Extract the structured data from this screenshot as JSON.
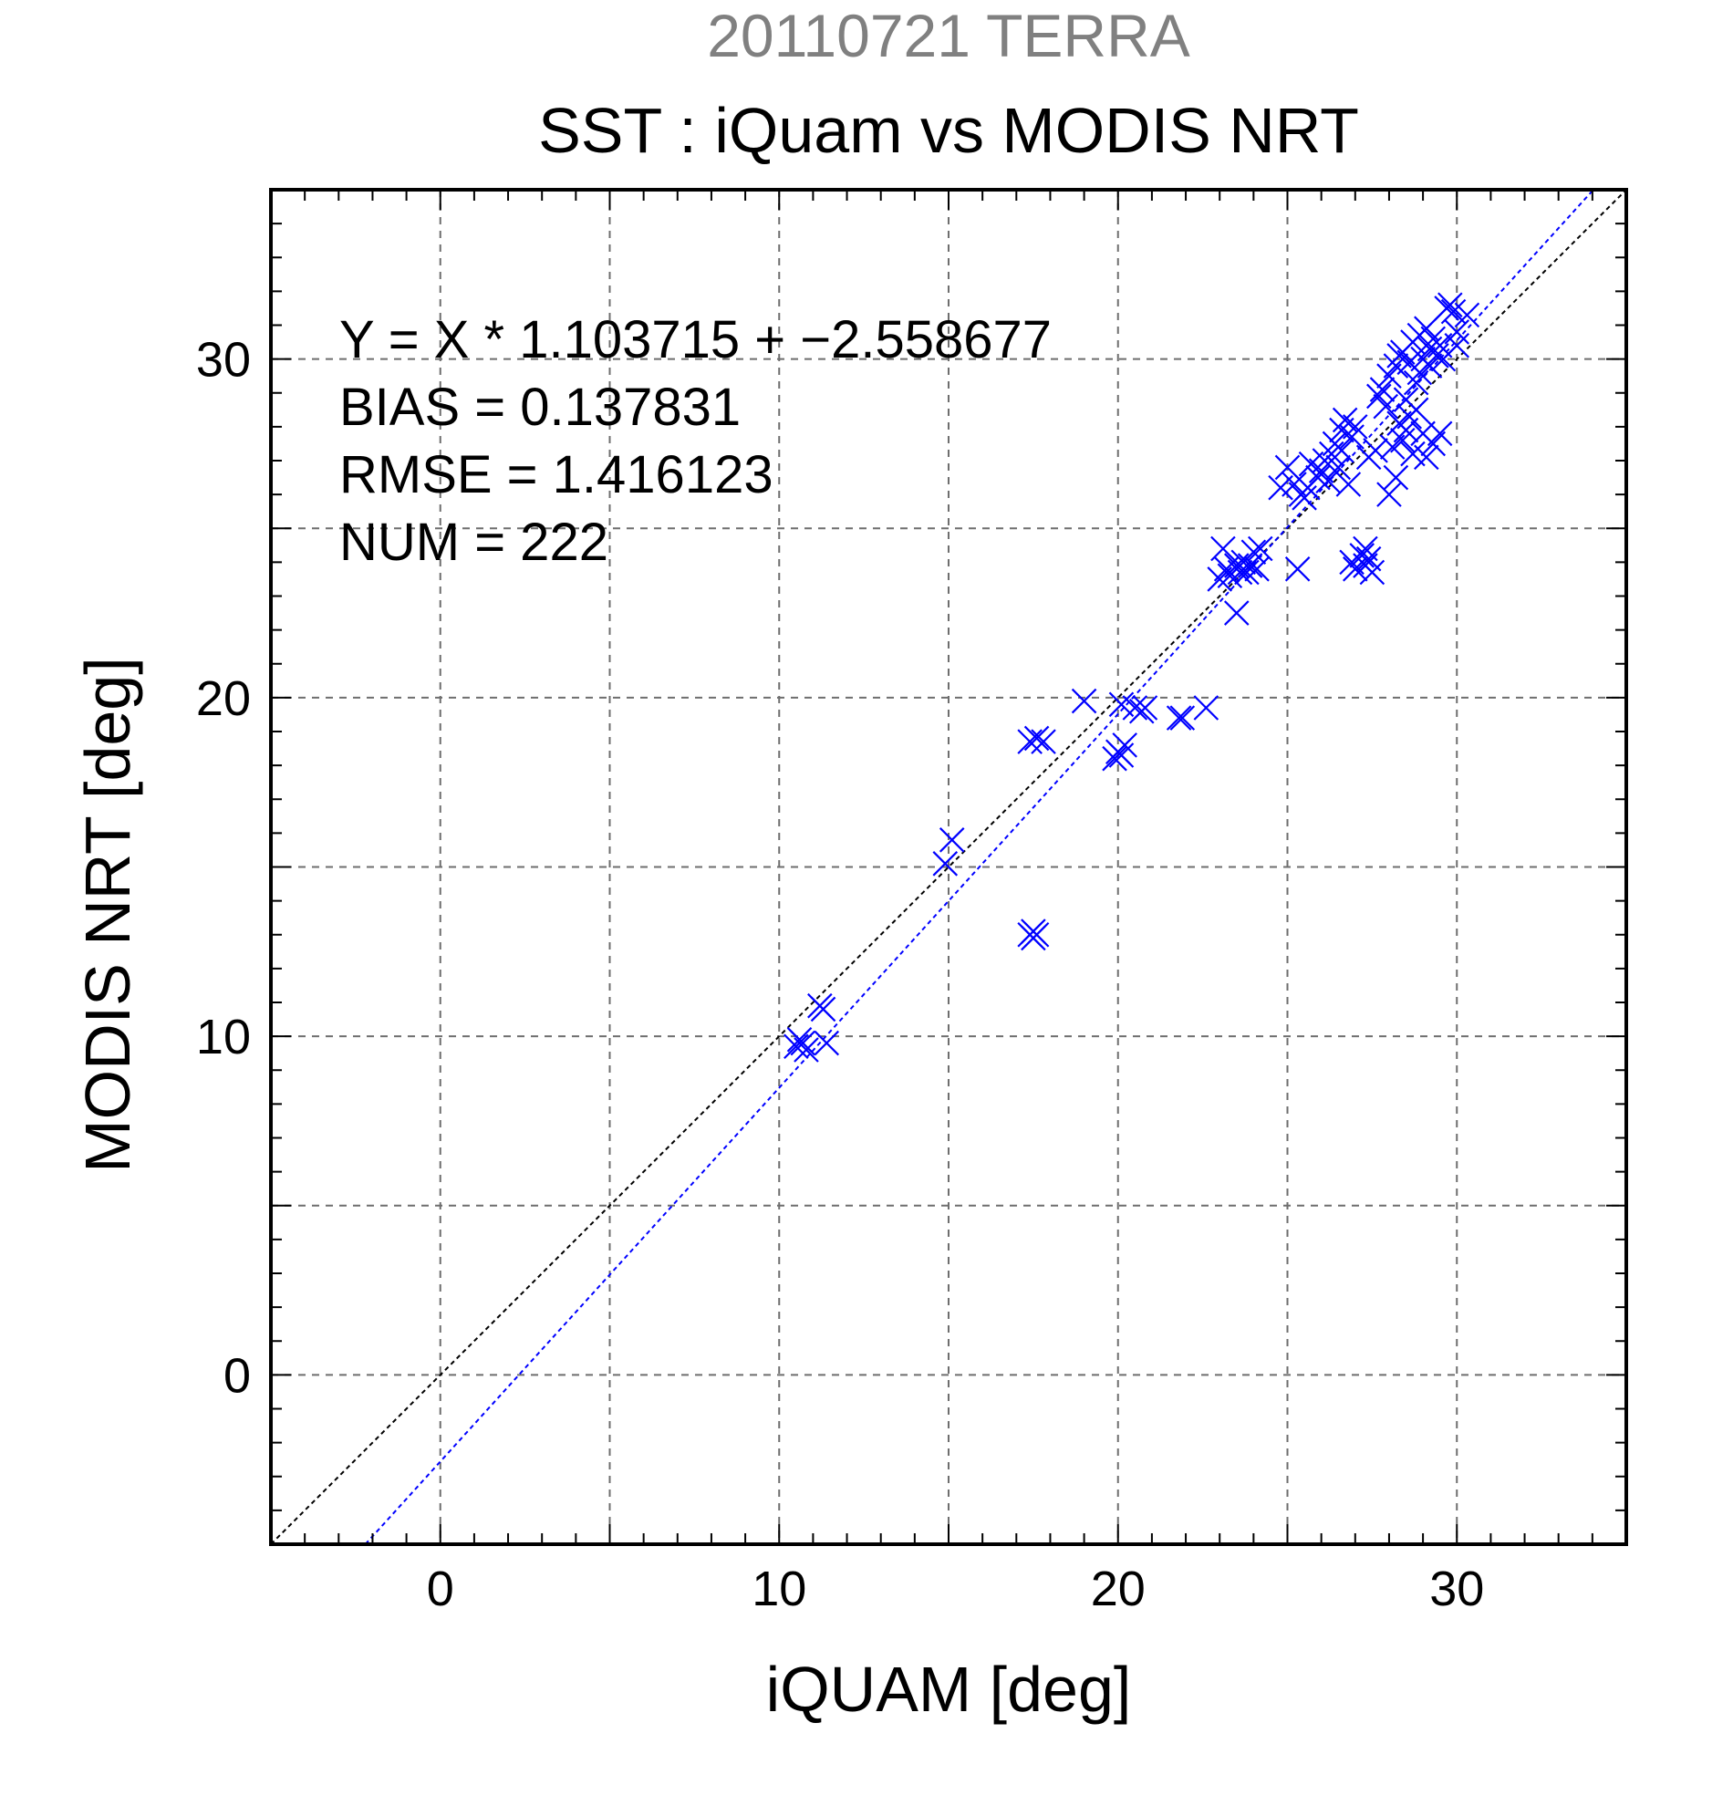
{
  "chart_data": {
    "type": "scatter",
    "supertitle": "20110721 TERRA",
    "title": "SST : iQuam vs MODIS NRT",
    "xlabel": "iQUAM [deg]",
    "ylabel": "MODIS NRT [deg]",
    "xlim": [
      -5,
      35
    ],
    "ylim": [
      -5,
      35
    ],
    "xticks": [
      "0",
      "10",
      "20",
      "30"
    ],
    "yticks": [
      "0",
      "10",
      "20",
      "30"
    ],
    "grid": true,
    "stats": {
      "equation": "Y = X * 1.103715 + −2.558677",
      "bias": "BIAS = 0.137831",
      "rmse": "RMSE = 1.416123",
      "num": "NUM = 222"
    },
    "lines": [
      {
        "name": "1:1",
        "slope": 1.0,
        "intercept": 0.0,
        "color": "#000000"
      },
      {
        "name": "fit",
        "slope": 1.103715,
        "intercept": -2.558677,
        "color": "#0000ff"
      }
    ],
    "marker_color": "#0000ff",
    "points": [
      [
        10.5,
        9.7
      ],
      [
        10.6,
        9.9
      ],
      [
        10.7,
        9.8
      ],
      [
        10.8,
        9.6
      ],
      [
        11.2,
        10.9
      ],
      [
        11.3,
        10.8
      ],
      [
        11.4,
        9.8
      ],
      [
        14.9,
        15.1
      ],
      [
        15.1,
        15.8
      ],
      [
        17.4,
        13.0
      ],
      [
        17.5,
        12.9
      ],
      [
        17.5,
        13.1
      ],
      [
        17.6,
        13.0
      ],
      [
        17.4,
        18.7
      ],
      [
        17.6,
        18.8
      ],
      [
        17.8,
        18.7
      ],
      [
        19.0,
        19.9
      ],
      [
        19.9,
        18.2
      ],
      [
        20.0,
        18.4
      ],
      [
        20.1,
        18.3
      ],
      [
        20.1,
        19.8
      ],
      [
        20.2,
        18.6
      ],
      [
        20.5,
        19.7
      ],
      [
        20.8,
        19.7
      ],
      [
        20.7,
        19.6
      ],
      [
        21.8,
        19.4
      ],
      [
        21.9,
        19.4
      ],
      [
        22.6,
        19.7
      ],
      [
        23.0,
        23.5
      ],
      [
        23.1,
        24.4
      ],
      [
        23.2,
        23.8
      ],
      [
        23.3,
        23.6
      ],
      [
        23.5,
        23.9
      ],
      [
        23.6,
        23.7
      ],
      [
        23.7,
        24.0
      ],
      [
        23.5,
        22.5
      ],
      [
        23.8,
        23.7
      ],
      [
        23.9,
        23.9
      ],
      [
        24.0,
        24.3
      ],
      [
        24.1,
        23.8
      ],
      [
        24.2,
        24.4
      ],
      [
        24.8,
        26.2
      ],
      [
        25.0,
        26.8
      ],
      [
        25.2,
        26.3
      ],
      [
        25.3,
        23.8
      ],
      [
        25.4,
        26.0
      ],
      [
        25.5,
        25.9
      ],
      [
        25.6,
        26.2
      ],
      [
        25.7,
        26.9
      ],
      [
        25.9,
        26.5
      ],
      [
        26.0,
        26.7
      ],
      [
        26.1,
        27.0
      ],
      [
        26.2,
        26.4
      ],
      [
        26.3,
        27.2
      ],
      [
        26.4,
        27.5
      ],
      [
        26.5,
        26.8
      ],
      [
        26.6,
        27.9
      ],
      [
        26.6,
        27.3
      ],
      [
        26.7,
        28.2
      ],
      [
        26.8,
        26.3
      ],
      [
        26.9,
        27.7
      ],
      [
        27.0,
        28.0
      ],
      [
        26.9,
        24.0
      ],
      [
        27.0,
        23.8
      ],
      [
        27.2,
        24.2
      ],
      [
        27.3,
        23.9
      ],
      [
        27.4,
        24.1
      ],
      [
        27.5,
        23.7
      ],
      [
        27.3,
        24.4
      ],
      [
        27.4,
        27.1
      ],
      [
        27.6,
        27.3
      ],
      [
        27.7,
        28.9
      ],
      [
        27.8,
        29.1
      ],
      [
        27.9,
        28.6
      ],
      [
        28.0,
        29.5
      ],
      [
        28.0,
        26.0
      ],
      [
        28.1,
        27.4
      ],
      [
        28.2,
        29.8
      ],
      [
        28.2,
        26.5
      ],
      [
        28.3,
        30.1
      ],
      [
        28.3,
        28.1
      ],
      [
        28.4,
        30.2
      ],
      [
        28.4,
        27.6
      ],
      [
        28.5,
        28.8
      ],
      [
        28.5,
        27.9
      ],
      [
        28.6,
        29.9
      ],
      [
        28.6,
        28.3
      ],
      [
        28.7,
        30.5
      ],
      [
        28.7,
        27.2
      ],
      [
        28.8,
        29.3
      ],
      [
        28.8,
        28.5
      ],
      [
        28.9,
        30.7
      ],
      [
        28.9,
        29.6
      ],
      [
        29.0,
        30.0
      ],
      [
        29.0,
        27.8
      ],
      [
        29.1,
        30.9
      ],
      [
        29.1,
        27.1
      ],
      [
        29.2,
        30.3
      ],
      [
        29.2,
        29.8
      ],
      [
        29.3,
        30.6
      ],
      [
        29.3,
        27.5
      ],
      [
        29.4,
        30.1
      ],
      [
        29.5,
        30.4
      ],
      [
        29.5,
        27.8
      ],
      [
        29.6,
        30.0
      ],
      [
        29.7,
        31.5
      ],
      [
        29.8,
        31.6
      ],
      [
        29.9,
        31.4
      ],
      [
        30.0,
        30.4
      ],
      [
        30.0,
        30.8
      ],
      [
        30.3,
        31.3
      ]
    ]
  }
}
